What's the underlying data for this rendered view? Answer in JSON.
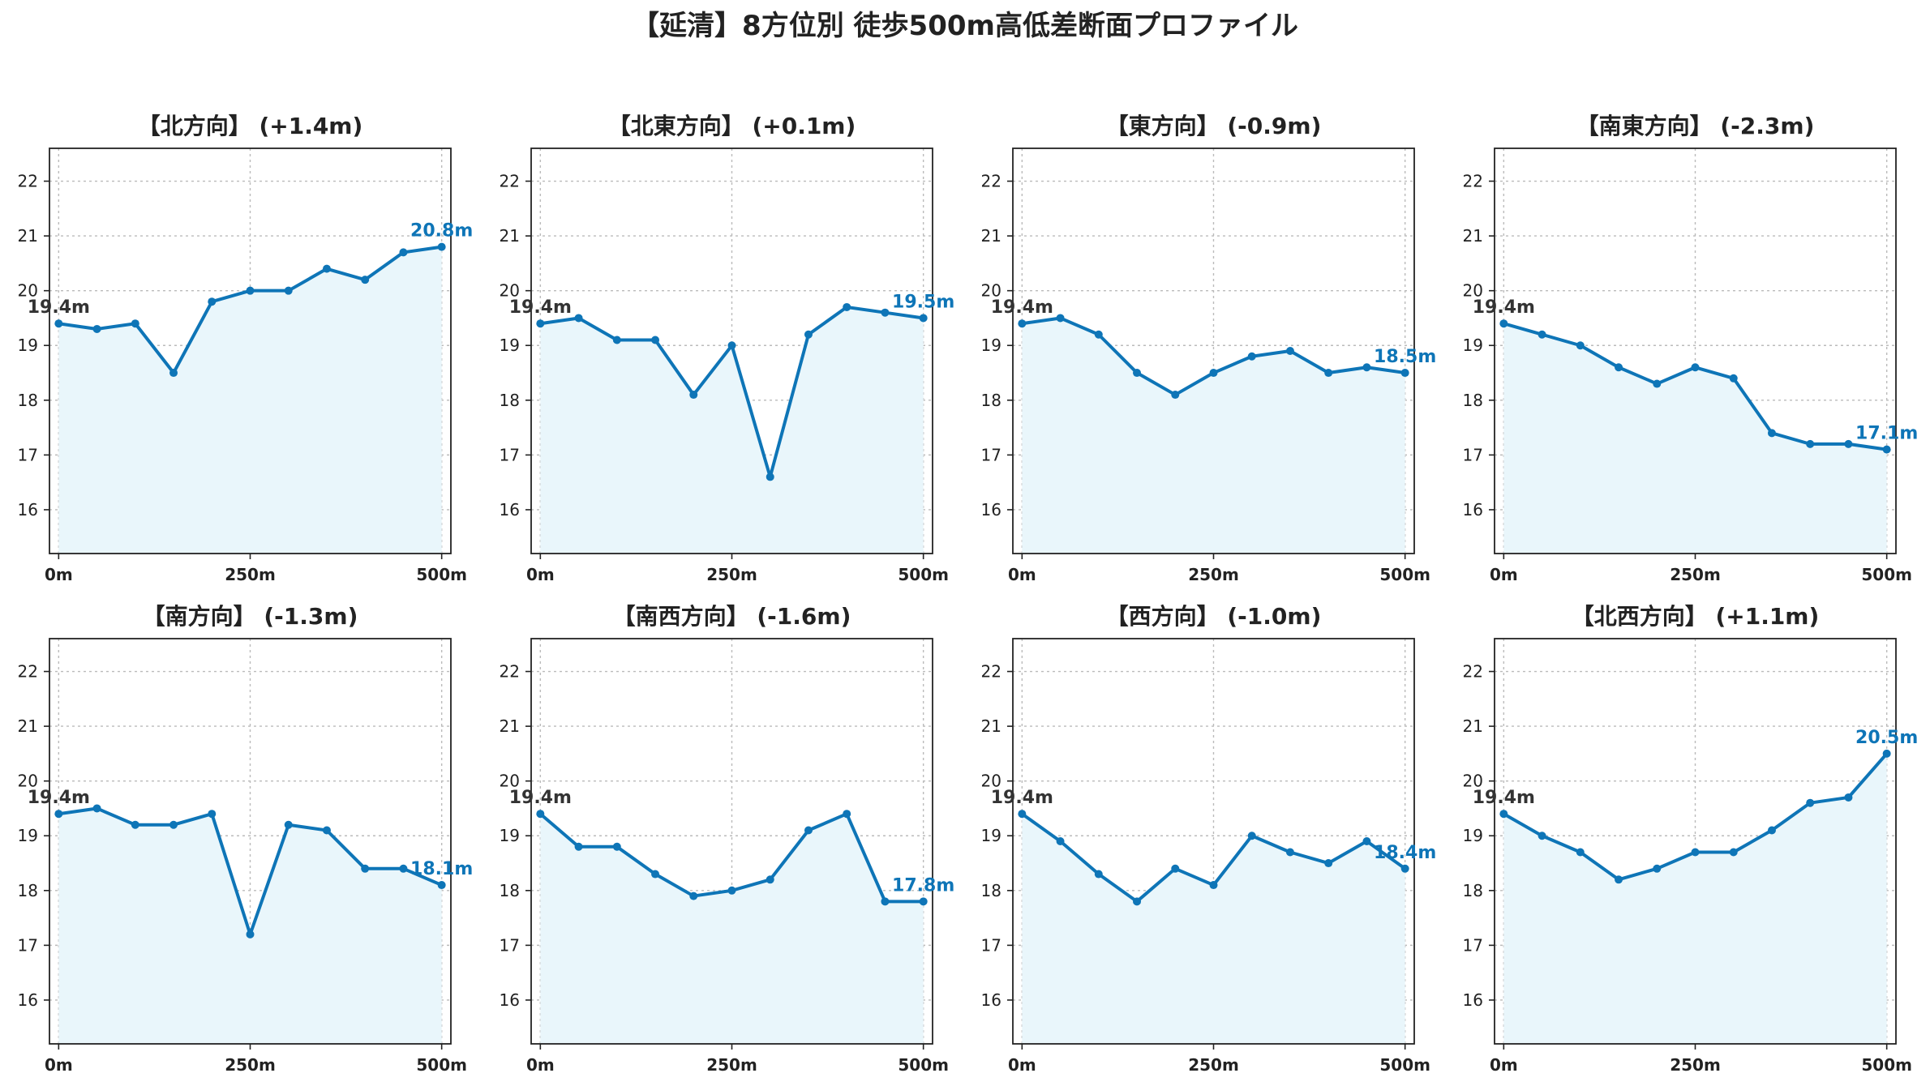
{
  "title": "【延清】8方位別 徒歩500m高低差断面プロファイル",
  "colors": {
    "line": "#0e75b7",
    "fill": "#e9f6fb",
    "start_label": "#333333",
    "end_label": "#0e75b7"
  },
  "chart_data": [
    {
      "type": "area",
      "title": "【北方向】 (+1.4m)",
      "x": [
        0,
        50,
        100,
        150,
        200,
        250,
        300,
        350,
        400,
        450,
        500
      ],
      "y": [
        19.4,
        19.3,
        19.4,
        18.5,
        19.8,
        20.0,
        20.0,
        20.4,
        20.2,
        20.7,
        20.8
      ],
      "start_label": "19.4m",
      "end_label": "20.8m",
      "xticks": [
        "0m",
        "250m",
        "500m"
      ],
      "yticks": [
        16,
        17,
        18,
        19,
        20,
        21,
        22
      ],
      "ylim": [
        15.2,
        22.6
      ],
      "xlim": [
        -12,
        512
      ],
      "grid": true
    },
    {
      "type": "area",
      "title": "【北東方向】 (+0.1m)",
      "x": [
        0,
        50,
        100,
        150,
        200,
        250,
        300,
        350,
        400,
        450,
        500
      ],
      "y": [
        19.4,
        19.5,
        19.1,
        19.1,
        18.1,
        19.0,
        16.6,
        19.2,
        19.7,
        19.6,
        19.5
      ],
      "start_label": "19.4m",
      "end_label": "19.5m",
      "xticks": [
        "0m",
        "250m",
        "500m"
      ],
      "yticks": [
        16,
        17,
        18,
        19,
        20,
        21,
        22
      ],
      "ylim": [
        15.2,
        22.6
      ],
      "xlim": [
        -12,
        512
      ],
      "grid": true
    },
    {
      "type": "area",
      "title": "【東方向】 (-0.9m)",
      "x": [
        0,
        50,
        100,
        150,
        200,
        250,
        300,
        350,
        400,
        450,
        500
      ],
      "y": [
        19.4,
        19.5,
        19.2,
        18.5,
        18.1,
        18.5,
        18.8,
        18.9,
        18.5,
        18.6,
        18.5
      ],
      "start_label": "19.4m",
      "end_label": "18.5m",
      "xticks": [
        "0m",
        "250m",
        "500m"
      ],
      "yticks": [
        16,
        17,
        18,
        19,
        20,
        21,
        22
      ],
      "ylim": [
        15.2,
        22.6
      ],
      "xlim": [
        -12,
        512
      ],
      "grid": true
    },
    {
      "type": "area",
      "title": "【南東方向】 (-2.3m)",
      "x": [
        0,
        50,
        100,
        150,
        200,
        250,
        300,
        350,
        400,
        450,
        500
      ],
      "y": [
        19.4,
        19.2,
        19.0,
        18.6,
        18.3,
        18.6,
        18.4,
        17.4,
        17.2,
        17.2,
        17.1
      ],
      "start_label": "19.4m",
      "end_label": "17.1m",
      "xticks": [
        "0m",
        "250m",
        "500m"
      ],
      "yticks": [
        16,
        17,
        18,
        19,
        20,
        21,
        22
      ],
      "ylim": [
        15.2,
        22.6
      ],
      "xlim": [
        -12,
        512
      ],
      "grid": true
    },
    {
      "type": "area",
      "title": "【南方向】 (-1.3m)",
      "x": [
        0,
        50,
        100,
        150,
        200,
        250,
        300,
        350,
        400,
        450,
        500
      ],
      "y": [
        19.4,
        19.5,
        19.2,
        19.2,
        19.4,
        17.2,
        19.2,
        19.1,
        18.4,
        18.4,
        18.1
      ],
      "start_label": "19.4m",
      "end_label": "18.1m",
      "xticks": [
        "0m",
        "250m",
        "500m"
      ],
      "yticks": [
        16,
        17,
        18,
        19,
        20,
        21,
        22
      ],
      "ylim": [
        15.2,
        22.6
      ],
      "xlim": [
        -12,
        512
      ],
      "grid": true
    },
    {
      "type": "area",
      "title": "【南西方向】 (-1.6m)",
      "x": [
        0,
        50,
        100,
        150,
        200,
        250,
        300,
        350,
        400,
        450,
        500
      ],
      "y": [
        19.4,
        18.8,
        18.8,
        18.3,
        17.9,
        18.0,
        18.2,
        19.1,
        19.4,
        17.8,
        17.8
      ],
      "start_label": "19.4m",
      "end_label": "17.8m",
      "xticks": [
        "0m",
        "250m",
        "500m"
      ],
      "yticks": [
        16,
        17,
        18,
        19,
        20,
        21,
        22
      ],
      "ylim": [
        15.2,
        22.6
      ],
      "xlim": [
        -12,
        512
      ],
      "grid": true
    },
    {
      "type": "area",
      "title": "【西方向】 (-1.0m)",
      "x": [
        0,
        50,
        100,
        150,
        200,
        250,
        300,
        350,
        400,
        450,
        500
      ],
      "y": [
        19.4,
        18.9,
        18.3,
        17.8,
        18.4,
        18.1,
        19.0,
        18.7,
        18.5,
        18.9,
        18.4
      ],
      "start_label": "19.4m",
      "end_label": "18.4m",
      "xticks": [
        "0m",
        "250m",
        "500m"
      ],
      "yticks": [
        16,
        17,
        18,
        19,
        20,
        21,
        22
      ],
      "ylim": [
        15.2,
        22.6
      ],
      "xlim": [
        -12,
        512
      ],
      "grid": true
    },
    {
      "type": "area",
      "title": "【北西方向】 (+1.1m)",
      "x": [
        0,
        50,
        100,
        150,
        200,
        250,
        300,
        350,
        400,
        450,
        500
      ],
      "y": [
        19.4,
        19.0,
        18.7,
        18.2,
        18.4,
        18.7,
        18.7,
        19.1,
        19.6,
        19.7,
        20.5
      ],
      "start_label": "19.4m",
      "end_label": "20.5m",
      "xticks": [
        "0m",
        "250m",
        "500m"
      ],
      "yticks": [
        16,
        17,
        18,
        19,
        20,
        21,
        22
      ],
      "ylim": [
        15.2,
        22.6
      ],
      "xlim": [
        -12,
        512
      ],
      "grid": true
    }
  ]
}
